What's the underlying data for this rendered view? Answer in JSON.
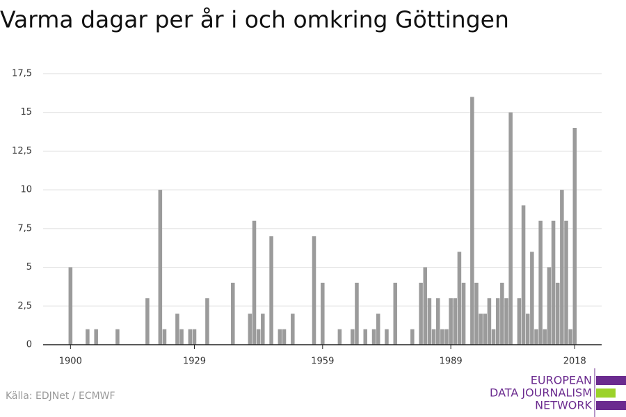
{
  "chart_data": {
    "type": "bar",
    "title": "Varma dagar per år i och omkring Göttingen",
    "source": "Källa: EDJNet / ECMWF",
    "logo": [
      "EUROPEAN",
      "DATA JOURNALISM",
      "NETWORK"
    ],
    "color": "#9b9b9b",
    "x": [
      1900,
      1901,
      1902,
      1903,
      1904,
      1905,
      1906,
      1907,
      1908,
      1909,
      1910,
      1911,
      1912,
      1913,
      1914,
      1915,
      1916,
      1917,
      1918,
      1919,
      1920,
      1921,
      1922,
      1923,
      1924,
      1925,
      1926,
      1927,
      1928,
      1929,
      1930,
      1931,
      1932,
      1933,
      1934,
      1935,
      1936,
      1937,
      1938,
      1939,
      1940,
      1941,
      1942,
      1943,
      1944,
      1945,
      1946,
      1947,
      1948,
      1949,
      1950,
      1951,
      1952,
      1953,
      1954,
      1955,
      1956,
      1957,
      1958,
      1959,
      1960,
      1961,
      1962,
      1963,
      1964,
      1965,
      1966,
      1967,
      1968,
      1969,
      1970,
      1971,
      1972,
      1973,
      1974,
      1975,
      1976,
      1977,
      1978,
      1979,
      1980,
      1981,
      1982,
      1983,
      1984,
      1985,
      1986,
      1987,
      1988,
      1989,
      1990,
      1991,
      1992,
      1993,
      1994,
      1995,
      1996,
      1997,
      1998,
      1999,
      2000,
      2001,
      2002,
      2003,
      2004,
      2005,
      2006,
      2007,
      2008,
      2009,
      2010,
      2011,
      2012,
      2013,
      2014,
      2015,
      2016,
      2017,
      2018
    ],
    "values": [
      5,
      0,
      0,
      0,
      1,
      0,
      1,
      0,
      0,
      0,
      0,
      1,
      0,
      0,
      0,
      0,
      0,
      0,
      3,
      0,
      0,
      10,
      1,
      0,
      0,
      2,
      1,
      0,
      1,
      1,
      0,
      0,
      3,
      0,
      0,
      0,
      0,
      0,
      4,
      0,
      0,
      0,
      2,
      8,
      1,
      2,
      0,
      7,
      0,
      1,
      1,
      0,
      2,
      0,
      0,
      0,
      0,
      7,
      0,
      4,
      0,
      0,
      0,
      1,
      0,
      0,
      1,
      4,
      0,
      1,
      0,
      1,
      2,
      0,
      1,
      0,
      4,
      0,
      0,
      0,
      1,
      0,
      4,
      5,
      3,
      1,
      3,
      1,
      1,
      3,
      3,
      6,
      4,
      0,
      16,
      4,
      2,
      2,
      3,
      1,
      3,
      4,
      3,
      15,
      0,
      3,
      9,
      2,
      6,
      1,
      8,
      1,
      5,
      8,
      4,
      10,
      8,
      1,
      14
    ],
    "xlim": [
      1893.6,
      2024.3
    ],
    "xticks": [
      1900,
      1929,
      1959,
      1989,
      2018
    ],
    "ylim": [
      0,
      17.5
    ],
    "yticks": [
      0,
      {
        "value": 2.5,
        "label": "2,5"
      },
      5,
      {
        "value": 7.5,
        "label": "7,5"
      },
      10,
      {
        "value": 12.5,
        "label": "12,5"
      },
      15,
      {
        "value": 17.5,
        "label": "17,5"
      }
    ],
    "grid": true
  }
}
